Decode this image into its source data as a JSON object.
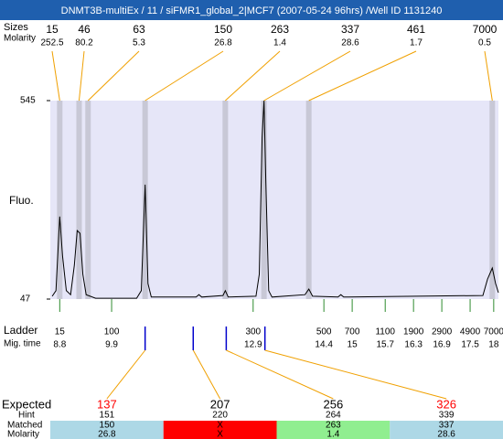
{
  "chart_data": {
    "type": "line",
    "title": "DNMT3B-multiEx / 11 / siFMR1_global_2|MCF7 (2007-05-24 96hrs) /Well ID 1131240",
    "ylabel": "Fluo.",
    "ylim": [
      47,
      545
    ],
    "yticks": [
      47,
      545
    ],
    "xlim": [
      8.6,
      18.1
    ],
    "x": [
      8.64,
      8.72,
      8.8,
      8.86,
      8.94,
      9.03,
      9.11,
      9.17,
      9.23,
      9.29,
      9.36,
      9.56,
      10.43,
      10.53,
      10.61,
      10.67,
      10.74,
      11.69,
      11.75,
      11.81,
      12.26,
      12.31,
      12.37,
      12.96,
      13.03,
      13.09,
      13.13,
      13.17,
      13.23,
      13.3,
      14.0,
      14.08,
      14.16,
      14.7,
      14.76,
      14.82,
      17.77,
      17.87,
      17.97,
      18.04,
      18.1
    ],
    "series": [
      {
        "color": "#000000",
        "values": [
          54,
          68,
          254,
          155,
          68,
          58,
          132,
          219,
          212,
          109,
          58,
          49,
          49,
          68,
          334,
          86,
          52,
          52,
          58,
          52,
          56,
          68,
          52,
          54,
          109,
          453,
          545,
          338,
          68,
          52,
          58,
          72,
          54,
          52,
          58,
          52,
          56,
          97,
          125,
          86,
          63
        ]
      }
    ],
    "peaks": {
      "row_labels": [
        "Sizes",
        "Molarity"
      ],
      "sizes": [
        15,
        46,
        63,
        150,
        263,
        337,
        461,
        7000
      ],
      "molarity": [
        252.5,
        80.2,
        5.3,
        26.8,
        1.4,
        28.6,
        1.7,
        0.5
      ],
      "x": [
        8.8,
        9.21,
        9.4,
        10.61,
        12.31,
        13.13,
        14.08,
        17.97
      ]
    },
    "ladder": {
      "row_labels": [
        "Ladder",
        "Mig. time"
      ],
      "sizes": [
        15,
        100,
        300,
        500,
        700,
        1100,
        1900,
        2900,
        4900,
        7000
      ],
      "mig_time": [
        8.8,
        9.9,
        12.9,
        14.4,
        15,
        15.7,
        16.3,
        16.9,
        17.5,
        18
      ]
    },
    "expected": {
      "row_labels": [
        "Expected",
        "Hint",
        "Matched",
        "Molarity"
      ],
      "columns": [
        {
          "expected": 137,
          "expected_color": "#ff0000",
          "hint": 151,
          "matched": 150,
          "molarity": 26.8,
          "color": "#add8e6",
          "x": 10.61
        },
        {
          "expected": 207,
          "expected_color": "#000000",
          "hint": 220,
          "matched": "X",
          "molarity": "X",
          "color": "#ff0000",
          "x": 11.63
        },
        {
          "expected": 256,
          "expected_color": "#000000",
          "hint": 264,
          "matched": 263,
          "molarity": 1.4,
          "color": "#90ee90",
          "x": 12.33
        },
        {
          "expected": 326,
          "expected_color": "#ff0000",
          "hint": 339,
          "matched": 337,
          "molarity": 28.6,
          "color": "#add8e6",
          "x": 13.15
        }
      ]
    }
  }
}
